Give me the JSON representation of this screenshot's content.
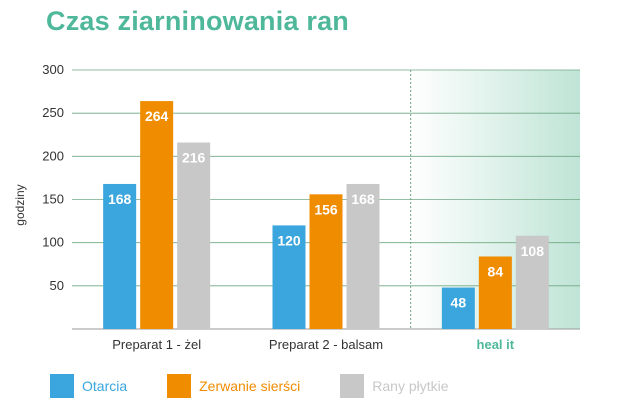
{
  "chart_data": {
    "type": "bar",
    "title": "Czas ziarninowania ran",
    "ylabel": "godziny",
    "xlabel": "",
    "ylim": [
      0,
      300
    ],
    "yticks": [
      50,
      100,
      150,
      200,
      250,
      300
    ],
    "grid": true,
    "legend_position": "bottom",
    "categories": [
      "Preparat 1 - żel",
      "Preparat 2 - balsam",
      "heal it"
    ],
    "highlight_category": "heal it",
    "series": [
      {
        "name": "Otarcia",
        "color": "#3aa6dd",
        "values": [
          168,
          120,
          48
        ]
      },
      {
        "name": "Zerwanie sierści",
        "color": "#f08c00",
        "values": [
          264,
          156,
          84
        ]
      },
      {
        "name": "Rany płytkie",
        "color": "#c8c8c8",
        "values": [
          216,
          168,
          108
        ]
      }
    ]
  },
  "colors": {
    "title": "#4fb79a",
    "axis_text": "#333333",
    "grid": "#6fa882",
    "highlight_start": "#ffffff",
    "highlight_end": "#bfe4d6",
    "highlight_label": "#4fb79a"
  }
}
